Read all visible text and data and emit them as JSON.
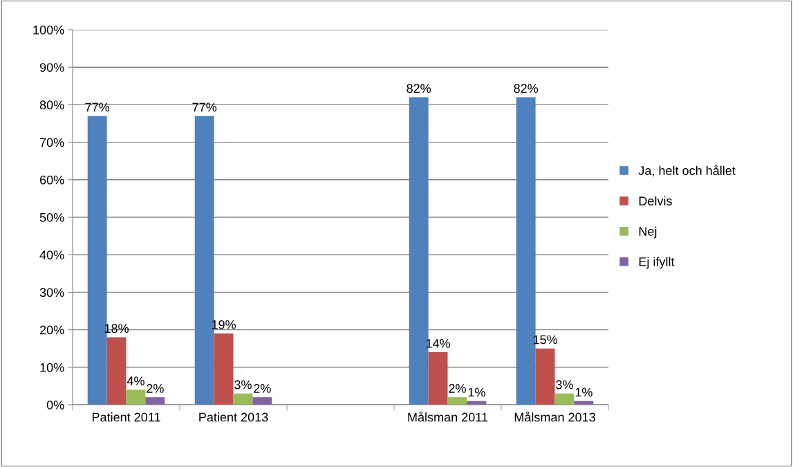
{
  "chart_data": {
    "type": "bar",
    "categories": [
      "Patient 2011",
      "Patient 2013",
      null,
      "Målsman 2011",
      "Målsman 2013"
    ],
    "series": [
      {
        "name": "Ja, helt och hållet",
        "color": "#4f81bd",
        "values": [
          77,
          77,
          null,
          82,
          82
        ],
        "value_labels": [
          "77%",
          "77%",
          null,
          "82%",
          "82%"
        ]
      },
      {
        "name": "Delvis",
        "color": "#c0504d",
        "values": [
          18,
          19,
          null,
          14,
          15
        ],
        "value_labels": [
          "18%",
          "19%",
          null,
          "14%",
          "15%"
        ]
      },
      {
        "name": "Nej",
        "color": "#9bbb59",
        "values": [
          4,
          3,
          null,
          2,
          3
        ],
        "value_labels": [
          "4%",
          "3%",
          null,
          "2%",
          "3%"
        ]
      },
      {
        "name": "Ej ifyllt",
        "color": "#8064a2",
        "values": [
          2,
          2,
          null,
          1,
          1
        ],
        "value_labels": [
          "2%",
          "2%",
          null,
          "1%",
          "1%"
        ]
      }
    ],
    "ylim": [
      0,
      100
    ],
    "yticks": [
      {
        "value": 0,
        "label": "0%"
      },
      {
        "value": 10,
        "label": "10%"
      },
      {
        "value": 20,
        "label": "20%"
      },
      {
        "value": 30,
        "label": "30%"
      },
      {
        "value": 40,
        "label": "40%"
      },
      {
        "value": 50,
        "label": "50%"
      },
      {
        "value": 60,
        "label": "60%"
      },
      {
        "value": 70,
        "label": "70%"
      },
      {
        "value": 80,
        "label": "80%"
      },
      {
        "value": 90,
        "label": "90%"
      },
      {
        "value": 100,
        "label": "100%"
      }
    ],
    "grid": "y",
    "legend": "right"
  }
}
